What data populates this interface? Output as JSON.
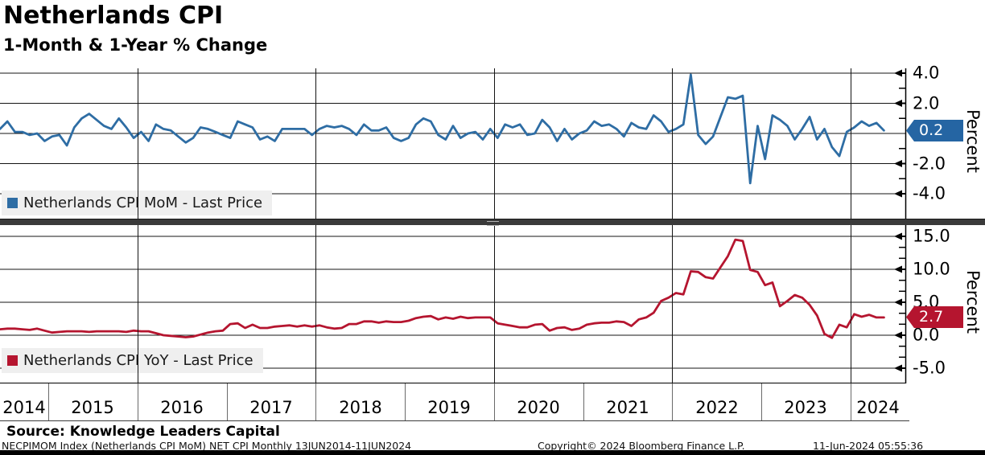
{
  "header": {
    "title": "Netherlands CPI",
    "subtitle": "1-Month & 1-Year % Change"
  },
  "colors": {
    "mom_line": "#2e6da4",
    "yoy_line": "#b5152f",
    "mom_badge": "#2565a3",
    "yoy_badge": "#b5152f",
    "grid": "#141414",
    "legend_bg": "#efefef",
    "separator": "#3a3a3a"
  },
  "panels": {
    "top": {
      "legend_label": "Netherlands CPI MoM - Last Price",
      "badge": "0.2",
      "axis_label": "Percent"
    },
    "bottom": {
      "legend_label": "Netherlands CPI YoY - Last Price",
      "badge": "2.7",
      "axis_label": "Percent"
    }
  },
  "x_axis": {
    "years": [
      "2014",
      "2015",
      "2016",
      "2017",
      "2018",
      "2019",
      "2020",
      "2021",
      "2022",
      "2023",
      "2024"
    ],
    "gridline_years": [
      2016,
      2018,
      2020,
      2022,
      2024
    ]
  },
  "footer": {
    "source": "Source: Knowledge Leaders Capital",
    "ticker_line": "NECPIMOM Index (Netherlands CPI MoM) NET CPI  Monthly 13JUN2014-11JUN2024",
    "copyright": "Copyright© 2024 Bloomberg Finance L.P.",
    "timestamp": "11-Jun-2024 05:55:36"
  },
  "chart_data": [
    {
      "type": "line",
      "panel": "top",
      "name": "Netherlands CPI MoM - Last Price",
      "unit": "percent",
      "freq": "monthly",
      "start": "2014-06",
      "end": "2024-05",
      "color": "#2e6da4",
      "last_value": 0.2,
      "ylim": [
        -4.6,
        4.4
      ],
      "ygrid": [
        4,
        2,
        0,
        -2,
        -4
      ],
      "ytick_values": [
        4,
        2,
        -2,
        -4
      ],
      "ytick_labels": [
        "4.0",
        "2.0",
        "-2.0",
        "-4.0"
      ],
      "yticks_minor": [
        3,
        1,
        -1,
        -3
      ],
      "values": [
        0.3,
        0.8,
        0.1,
        0.1,
        -0.1,
        0.0,
        -0.5,
        -0.2,
        -0.1,
        -0.8,
        0.4,
        1.0,
        1.3,
        0.9,
        0.5,
        0.3,
        1.0,
        0.4,
        -0.3,
        0.1,
        -0.5,
        0.6,
        0.3,
        0.2,
        -0.2,
        -0.6,
        -0.3,
        0.4,
        0.3,
        0.1,
        -0.1,
        -0.3,
        0.8,
        0.6,
        0.4,
        -0.4,
        -0.2,
        -0.5,
        0.3,
        0.3,
        0.3,
        0.3,
        -0.1,
        0.3,
        0.5,
        0.4,
        0.5,
        0.3,
        -0.1,
        0.6,
        0.2,
        0.2,
        0.4,
        -0.3,
        -0.5,
        -0.3,
        0.6,
        1.0,
        0.8,
        -0.1,
        -0.4,
        0.5,
        -0.3,
        0.0,
        0.1,
        -0.4,
        0.3,
        -0.3,
        0.6,
        0.4,
        0.6,
        -0.1,
        0.0,
        0.9,
        0.4,
        -0.5,
        0.3,
        -0.4,
        0.0,
        0.2,
        0.8,
        0.5,
        0.6,
        0.3,
        -0.2,
        0.7,
        0.4,
        0.3,
        1.2,
        0.8,
        0.1,
        0.3,
        0.6,
        3.9,
        -0.1,
        -0.7,
        -0.2,
        1.1,
        2.4,
        2.3,
        2.5,
        -3.3,
        0.5,
        -1.7,
        1.2,
        0.9,
        0.5,
        -0.4,
        0.3,
        1.1,
        -0.4,
        0.3,
        -0.9,
        -1.5,
        0.1,
        0.4,
        0.8,
        0.5,
        0.7,
        0.2
      ]
    },
    {
      "type": "line",
      "panel": "bottom",
      "name": "Netherlands CPI YoY - Last Price",
      "unit": "percent",
      "freq": "monthly",
      "start": "2014-06",
      "end": "2024-05",
      "color": "#b5152f",
      "last_value": 2.7,
      "ylim": [
        -7,
        16.5
      ],
      "ygrid": [
        15,
        10,
        5,
        0,
        -5
      ],
      "ytick_values": [
        15,
        10,
        5,
        0,
        -5
      ],
      "ytick_labels": [
        "15.0",
        "10.0",
        "5.0",
        "0.0",
        "-5.0"
      ],
      "yticks_minor": [
        13.33,
        11.67,
        8.33,
        6.67,
        3.33,
        1.67,
        -1.67,
        -3.33
      ],
      "values": [
        0.9,
        1.0,
        1.0,
        0.9,
        0.8,
        1.0,
        0.7,
        0.4,
        0.5,
        0.6,
        0.6,
        0.6,
        0.5,
        0.6,
        0.6,
        0.6,
        0.6,
        0.5,
        0.7,
        0.6,
        0.6,
        0.3,
        0.0,
        -0.1,
        -0.2,
        -0.3,
        -0.2,
        0.1,
        0.4,
        0.6,
        0.7,
        1.7,
        1.8,
        1.1,
        1.6,
        1.1,
        1.1,
        1.3,
        1.4,
        1.5,
        1.3,
        1.5,
        1.3,
        1.5,
        1.2,
        1.0,
        1.1,
        1.7,
        1.7,
        2.1,
        2.1,
        1.9,
        2.1,
        2.0,
        2.0,
        2.2,
        2.6,
        2.8,
        2.9,
        2.4,
        2.7,
        2.5,
        2.8,
        2.6,
        2.7,
        2.7,
        2.7,
        1.8,
        1.6,
        1.4,
        1.2,
        1.2,
        1.6,
        1.7,
        0.7,
        1.1,
        1.2,
        0.8,
        1.0,
        1.6,
        1.8,
        1.9,
        1.9,
        2.1,
        2.0,
        1.4,
        2.4,
        2.7,
        3.4,
        5.2,
        5.7,
        6.4,
        6.2,
        9.7,
        9.6,
        8.8,
        8.6,
        10.3,
        12.0,
        14.5,
        14.3,
        9.9,
        9.6,
        7.6,
        8.0,
        4.4,
        5.2,
        6.1,
        5.7,
        4.6,
        3.0,
        0.2,
        -0.4,
        1.6,
        1.2,
        3.2,
        2.8,
        3.1,
        2.7,
        2.7
      ]
    }
  ]
}
